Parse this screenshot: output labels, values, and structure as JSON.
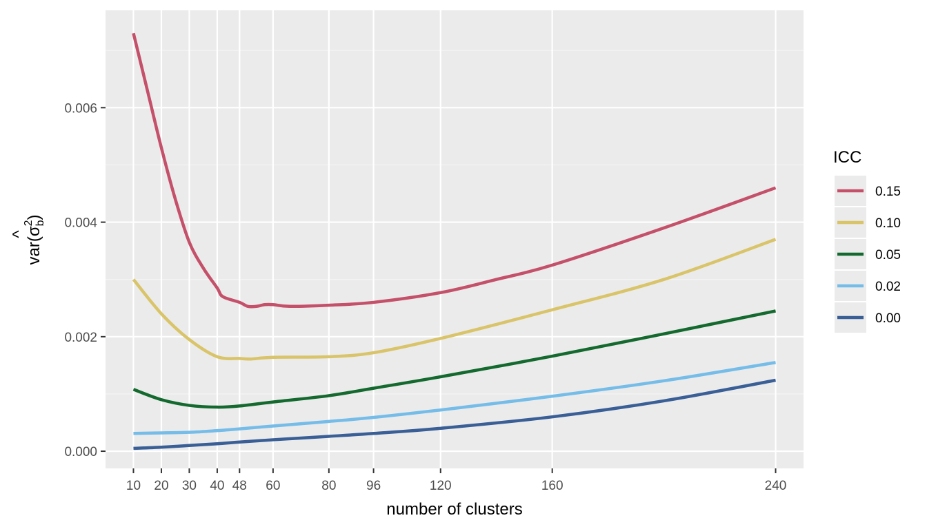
{
  "chart_data": {
    "type": "line",
    "xlabel": "number of clusters",
    "ylabel": {
      "prefix": "var(",
      "symbol": "σ",
      "superscript": "2",
      "subscript": "b",
      "hat": "^",
      "suffix": ")"
    },
    "xlim": [
      0,
      250
    ],
    "ylim": [
      -0.0003,
      0.0077
    ],
    "x_ticks": [
      10,
      20,
      30,
      40,
      48,
      60,
      80,
      96,
      120,
      160,
      240
    ],
    "x_tick_labels": [
      "10",
      "20",
      "30",
      "40",
      "48",
      "60",
      "80",
      "96",
      "120",
      "160",
      "240"
    ],
    "y_ticks": [
      0,
      0.002,
      0.004,
      0.006
    ],
    "y_tick_labels": [
      "0.000",
      "0.002",
      "0.004",
      "0.006"
    ],
    "y_minor_ticks": [
      0.001,
      0.003,
      0.005,
      0.007
    ],
    "grid": true,
    "legend": {
      "title": "ICC",
      "placement": "right"
    },
    "series": [
      {
        "name": "0.15",
        "color": "#c4506a",
        "points": [
          [
            10,
            0.0073
          ],
          [
            15,
            0.0063
          ],
          [
            20,
            0.0053
          ],
          [
            25,
            0.0044
          ],
          [
            30,
            0.00365
          ],
          [
            35,
            0.0032
          ],
          [
            40,
            0.00285
          ],
          [
            42,
            0.0027
          ],
          [
            48,
            0.0026
          ],
          [
            51,
            0.00253
          ],
          [
            54,
            0.00253
          ],
          [
            57,
            0.00256
          ],
          [
            60,
            0.00256
          ],
          [
            66,
            0.00253
          ],
          [
            80,
            0.00255
          ],
          [
            96,
            0.0026
          ],
          [
            120,
            0.00277
          ],
          [
            140,
            0.003
          ],
          [
            160,
            0.00325
          ],
          [
            200,
            0.0039
          ],
          [
            240,
            0.0046
          ]
        ]
      },
      {
        "name": "0.10",
        "color": "#d9c46a",
        "points": [
          [
            10,
            0.003
          ],
          [
            20,
            0.0024
          ],
          [
            30,
            0.00195
          ],
          [
            40,
            0.00165
          ],
          [
            48,
            0.00162
          ],
          [
            52,
            0.00161
          ],
          [
            60,
            0.00164
          ],
          [
            80,
            0.00165
          ],
          [
            96,
            0.00172
          ],
          [
            120,
            0.00197
          ],
          [
            160,
            0.00247
          ],
          [
            200,
            0.003
          ],
          [
            240,
            0.0037
          ]
        ]
      },
      {
        "name": "0.05",
        "color": "#146a2e",
        "points": [
          [
            10,
            0.00108
          ],
          [
            20,
            0.0009
          ],
          [
            30,
            0.0008
          ],
          [
            40,
            0.00077
          ],
          [
            48,
            0.00079
          ],
          [
            60,
            0.00086
          ],
          [
            80,
            0.00097
          ],
          [
            96,
            0.0011
          ],
          [
            120,
            0.0013
          ],
          [
            160,
            0.00166
          ],
          [
            200,
            0.00205
          ],
          [
            240,
            0.00245
          ]
        ]
      },
      {
        "name": "0.02",
        "color": "#75bde8",
        "points": [
          [
            10,
            0.00031
          ],
          [
            20,
            0.00032
          ],
          [
            30,
            0.00033
          ],
          [
            40,
            0.00036
          ],
          [
            48,
            0.00039
          ],
          [
            60,
            0.00044
          ],
          [
            80,
            0.00052
          ],
          [
            96,
            0.00059
          ],
          [
            120,
            0.00072
          ],
          [
            160,
            0.00096
          ],
          [
            200,
            0.00123
          ],
          [
            240,
            0.00155
          ]
        ]
      },
      {
        "name": "0.00",
        "color": "#3a5f96",
        "points": [
          [
            10,
            5e-05
          ],
          [
            20,
            7e-05
          ],
          [
            30,
            0.0001
          ],
          [
            40,
            0.00013
          ],
          [
            48,
            0.00016
          ],
          [
            60,
            0.0002
          ],
          [
            80,
            0.00026
          ],
          [
            96,
            0.00031
          ],
          [
            120,
            0.0004
          ],
          [
            160,
            0.0006
          ],
          [
            200,
            0.00088
          ],
          [
            240,
            0.00124
          ]
        ]
      }
    ]
  }
}
